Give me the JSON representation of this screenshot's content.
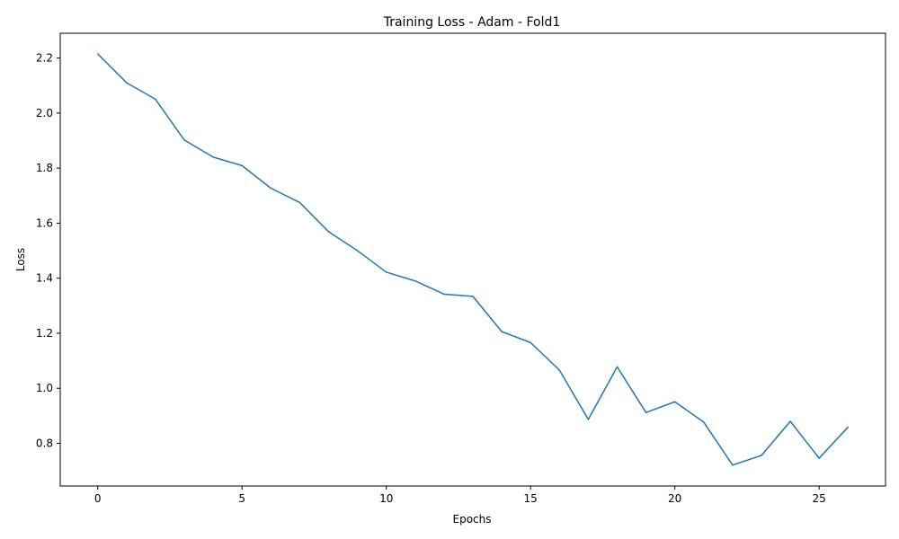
{
  "chart_data": {
    "type": "line",
    "title": "Training Loss - Adam - Fold1",
    "xlabel": "Epochs",
    "ylabel": "Loss",
    "xlim": [
      -1.3,
      27.3
    ],
    "ylim": [
      0.645,
      2.29
    ],
    "xticks": [
      0,
      5,
      10,
      15,
      20,
      25
    ],
    "xtick_labels": [
      "0",
      "5",
      "10",
      "15",
      "20",
      "25"
    ],
    "yticks": [
      0.8,
      1.0,
      1.2,
      1.4,
      1.6,
      1.8,
      2.0,
      2.2
    ],
    "ytick_labels": [
      "0.8",
      "1.0",
      "1.2",
      "1.4",
      "1.6",
      "1.8",
      "2.0",
      "2.2"
    ],
    "grid": false,
    "line_color": "#1f77b4",
    "series": [
      {
        "x": [
          0,
          1,
          2,
          3,
          4,
          5,
          6,
          7,
          8,
          9,
          10,
          11,
          12,
          13,
          14,
          15,
          16,
          17,
          18,
          19,
          20,
          21,
          22,
          23,
          24,
          25,
          26
        ],
        "values": [
          2.215,
          2.11,
          2.05,
          1.902,
          1.84,
          1.809,
          1.727,
          1.675,
          1.569,
          1.5,
          1.422,
          1.39,
          1.342,
          1.334,
          1.206,
          1.166,
          1.066,
          0.887,
          1.078,
          0.912,
          0.951,
          0.877,
          0.721,
          0.756,
          0.88,
          0.746,
          0.859
        ]
      }
    ]
  }
}
